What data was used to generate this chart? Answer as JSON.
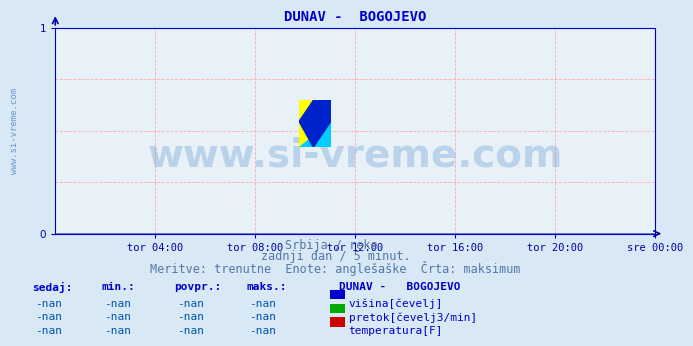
{
  "title": "DUNAV -  BOGOJEVO",
  "title_color": "#0000cc",
  "title_fontsize": 10,
  "bg_color": "#d8e8f4",
  "plot_bg_color": "#e8f0f8",
  "grid_color": "#ffaaaa",
  "xlim": [
    0,
    288
  ],
  "ylim": [
    0,
    1
  ],
  "yticks": [
    0,
    1
  ],
  "xtick_labels": [
    "tor 04:00",
    "tor 08:00",
    "tor 12:00",
    "tor 16:00",
    "tor 20:00",
    "sre 00:00"
  ],
  "xtick_positions": [
    48,
    96,
    144,
    192,
    240,
    288
  ],
  "watermark_text": "www.si-vreme.com",
  "watermark_color": "#4488cc",
  "watermark_alpha": 0.28,
  "watermark_fontsize": 28,
  "ylabel_text": "www.si-vreme.com",
  "ylabel_color": "#6699cc",
  "ylabel_fontsize": 6.5,
  "subtitle1": "Srbija / reke.",
  "subtitle2": "zadnji dan / 5 minut.",
  "subtitle3": "Meritve: trenutne  Enote: anglešaške  Črta: maksimum",
  "subtitle_color": "#5577aa",
  "subtitle_fontsize": 8.5,
  "axis_color": "#0000aa",
  "tick_color": "#0000aa",
  "tick_fontsize": 7.5,
  "table_header_color": "#0000cc",
  "table_value_color": "#0055aa",
  "legend_title": "DUNAV -   BOGOJEVO",
  "legend_entries": [
    "višina[čevelj]",
    "pretok[čevelj3/min]",
    "temperatura[F]"
  ],
  "legend_colors": [
    "#0000cc",
    "#00aa00",
    "#cc0000"
  ],
  "col_headers": [
    "sedaj:",
    "min.:",
    "povpr.:",
    "maks.:"
  ],
  "col_values": [
    "-nan",
    "-nan",
    "-nan",
    "-nan"
  ],
  "logo_colors": [
    "#ffff00",
    "#00ccff",
    "#0033cc"
  ],
  "spine_color": "#0000cc",
  "baseline_color": "#6666bb"
}
